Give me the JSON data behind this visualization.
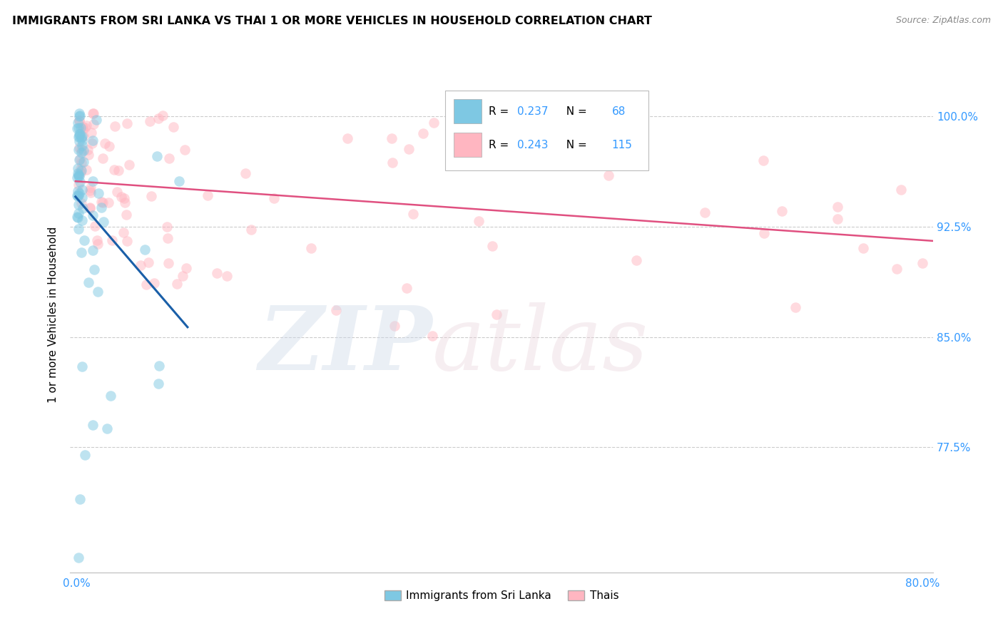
{
  "title": "IMMIGRANTS FROM SRI LANKA VS THAI 1 OR MORE VEHICLES IN HOUSEHOLD CORRELATION CHART",
  "source": "Source: ZipAtlas.com",
  "ylabel": "1 or more Vehicles in Household",
  "legend_sri_lanka": "Immigrants from Sri Lanka",
  "legend_thai": "Thais",
  "R_sri": 0.237,
  "N_sri": 68,
  "R_thai": 0.243,
  "N_thai": 115,
  "color_sri": "#7ec8e3",
  "color_thai": "#ffb6c1",
  "color_sri_line": "#1a5fa8",
  "color_thai_line": "#e05080",
  "ytick_vals": [
    1.0,
    0.925,
    0.85,
    0.775
  ],
  "ytick_labels": [
    "100.0%",
    "92.5%",
    "85.0%",
    "77.5%"
  ],
  "xlim_min": -0.006,
  "xlim_max": 0.81,
  "ylim_min": 0.69,
  "ylim_max": 1.04
}
